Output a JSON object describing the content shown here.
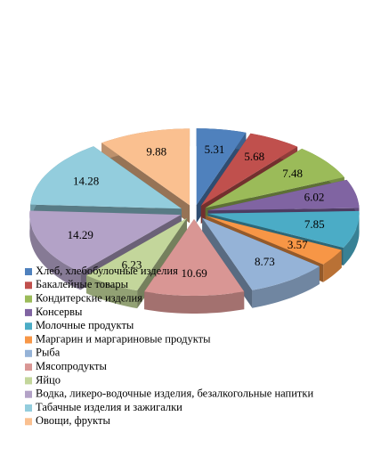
{
  "chart_data": {
    "type": "pie",
    "categories": [
      "Хлеб, хлебобулочные изделия",
      "Бакалейные товары",
      "Кондитерские изделия",
      "Консервы",
      "Молочные продукты",
      "Маргарин и маргариновые продукты",
      "Рыба",
      "Мясопродукты",
      "Яйцо",
      "Водка, ликеро-водочные изделия, безалкогольные напитки",
      "Табачные изделия и зажигалки",
      "Овощи, фрукты"
    ],
    "values": [
      5.31,
      5.68,
      7.48,
      6.02,
      7.85,
      3.57,
      8.73,
      10.69,
      6.23,
      14.29,
      14.28,
      9.88
    ],
    "colors": [
      "#4f81bd",
      "#c0504d",
      "#9bbb59",
      "#8064a2",
      "#4bacc6",
      "#f79646",
      "#95b3d7",
      "#d99694",
      "#c3d69b",
      "#b3a2c7",
      "#93cddd",
      "#fac090"
    ]
  }
}
